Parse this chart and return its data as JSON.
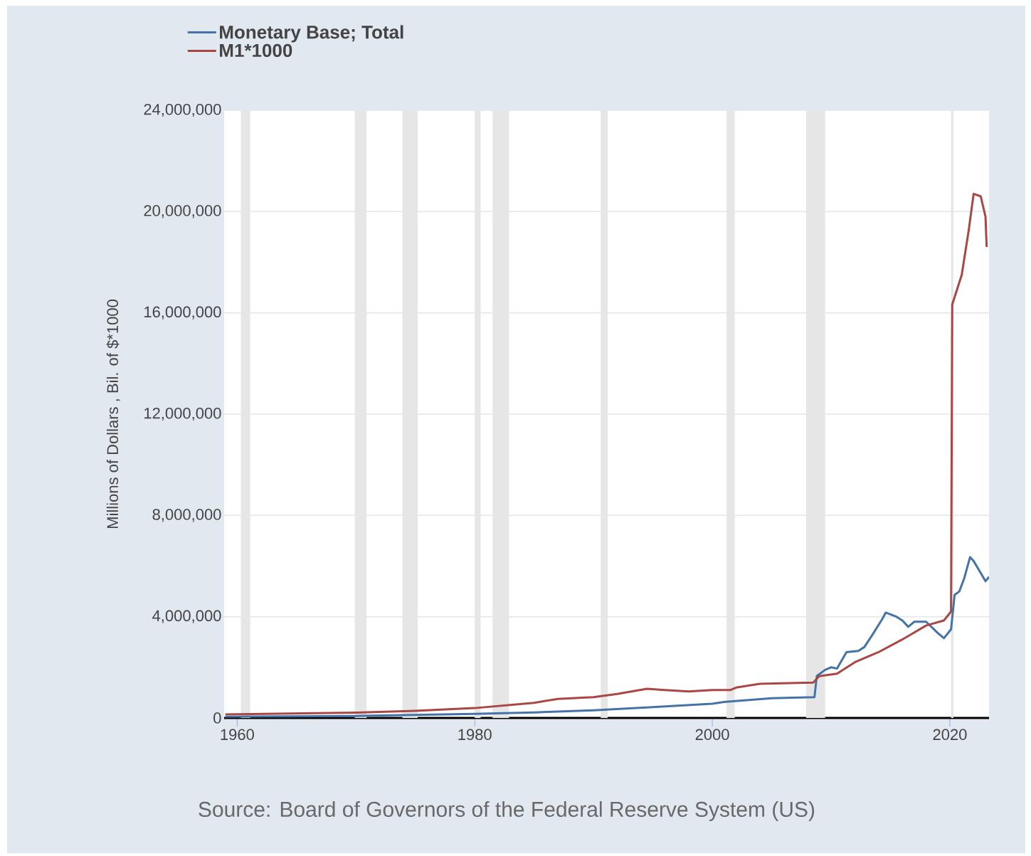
{
  "chart_data": {
    "type": "line",
    "ylabel": "Millions of Dollars , Bil. of $*1000",
    "annotations": [
      "Source: Board of Governors of the Federal Reserve System (US)"
    ],
    "xlim": [
      1958.9,
      2023.3
    ],
    "xticks": [
      1960,
      1980,
      2000,
      2020
    ],
    "ylim": [
      0,
      24000000
    ],
    "yticks": [
      {
        "value": 0,
        "label": "0"
      },
      {
        "value": 4000000,
        "label": "4,000,000"
      },
      {
        "value": 8000000,
        "label": "8,000,000"
      },
      {
        "value": 12000000,
        "label": "12,000,000"
      },
      {
        "value": 16000000,
        "label": "16,000,000"
      },
      {
        "value": 20000000,
        "label": "20,000,000"
      },
      {
        "value": 24000000,
        "label": "24,000,000"
      }
    ],
    "grid": "y",
    "legend": "top left",
    "line_style": "solid",
    "bands": [
      {
        "axis": "x",
        "from": 1960.3,
        "to": 1961.1,
        "color": "#e6e6e6"
      },
      {
        "axis": "x",
        "from": 1969.9,
        "to": 1970.9,
        "color": "#e6e6e6"
      },
      {
        "axis": "x",
        "from": 1973.9,
        "to": 1975.2,
        "color": "#e6e6e6"
      },
      {
        "axis": "x",
        "from": 1980.0,
        "to": 1980.5,
        "color": "#e6e6e6"
      },
      {
        "axis": "x",
        "from": 1981.5,
        "to": 1982.9,
        "color": "#e6e6e6"
      },
      {
        "axis": "x",
        "from": 1990.6,
        "to": 1991.2,
        "color": "#e6e6e6"
      },
      {
        "axis": "x",
        "from": 2001.2,
        "to": 2001.9,
        "color": "#e6e6e6"
      },
      {
        "axis": "x",
        "from": 2007.9,
        "to": 2009.5,
        "color": "#e6e6e6"
      },
      {
        "axis": "x",
        "from": 2020.1,
        "to": 2020.3,
        "color": "#e6e6e6"
      }
    ],
    "series": [
      {
        "name": "Monetary Base; Total",
        "color": "#4572a7",
        "x": [
          1959,
          1970,
          1980,
          1985,
          1990,
          1995,
          2000,
          2001,
          2005,
          2008.6,
          2008.8,
          2009.5,
          2010,
          2010.5,
          2011.3,
          2012.3,
          2012.8,
          2013.5,
          2014.3,
          2014.6,
          2015.5,
          2016,
          2016.5,
          2017,
          2018,
          2019,
          2019.5,
          2020.1,
          2020.4,
          2020.8,
          2021.2,
          2021.7,
          2022,
          2022.5,
          2023,
          2023.3
        ],
        "values": [
          50000,
          80000,
          160000,
          220000,
          300000,
          430000,
          560000,
          630000,
          780000,
          820000,
          1660000,
          1900000,
          2000000,
          1950000,
          2600000,
          2650000,
          2800000,
          3300000,
          3900000,
          4160000,
          4000000,
          3850000,
          3600000,
          3800000,
          3800000,
          3350000,
          3150000,
          3500000,
          4860000,
          5000000,
          5500000,
          6350000,
          6200000,
          5800000,
          5400000,
          5570000
        ]
      },
      {
        "name": "M1*1000",
        "color": "#aa4643",
        "x": [
          1959,
          1970,
          1975,
          1980,
          1985,
          1987,
          1990,
          1992,
          1994.5,
          1996,
          1998,
          2000,
          2001.5,
          2002,
          2004,
          2008.5,
          2009,
          2010.5,
          2012,
          2014,
          2016,
          2018,
          2019.5,
          2020.1,
          2020.2,
          2021,
          2021.6,
          2022,
          2022.6,
          2023,
          2023.1
        ],
        "values": [
          140000,
          210000,
          280000,
          390000,
          600000,
          750000,
          820000,
          950000,
          1150000,
          1100000,
          1050000,
          1100000,
          1100000,
          1200000,
          1350000,
          1400000,
          1650000,
          1750000,
          2200000,
          2600000,
          3100000,
          3650000,
          3850000,
          4200000,
          16330000,
          17500000,
          19300000,
          20700000,
          20600000,
          19800000,
          18600000
        ]
      }
    ]
  }
}
